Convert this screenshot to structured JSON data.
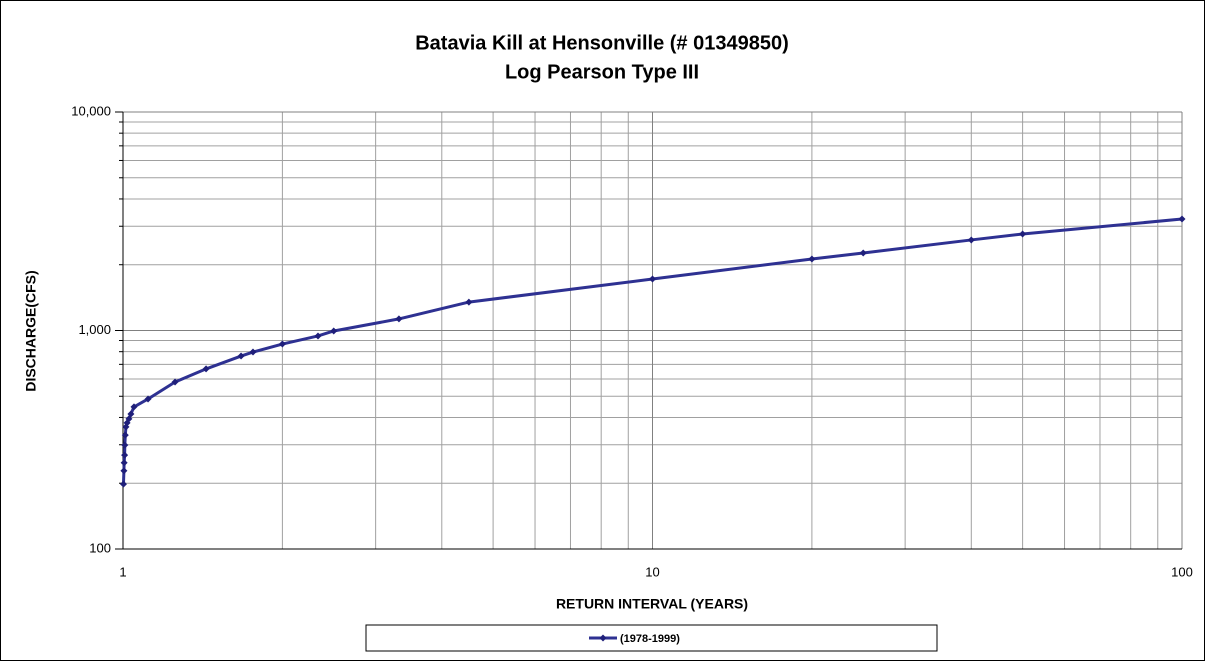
{
  "chart_data": {
    "type": "line",
    "title": "Batavia Kill at Hensonville (# 01349850)",
    "subtitle": "Log Pearson Type III",
    "x_label": "RETURN INTERVAL (YEARS)",
    "y_label": "DISCHARGE(CFS)",
    "x_scale": "log",
    "y_scale": "log",
    "grid": true,
    "legend": "bottom",
    "x": [
      1.002,
      1.004,
      1.005,
      1.007,
      1.008,
      1.01,
      1.013,
      1.018,
      1.026,
      1.035,
      1.049,
      1.115,
      1.254,
      1.435,
      1.671,
      1.76,
      2.0,
      2.335,
      2.5,
      3.32,
      4.5,
      10,
      20,
      25,
      40,
      50,
      100
    ],
    "series": [
      {
        "name": "(1978-1999)",
        "color": "#2e3192",
        "values": [
          198,
          228,
          248,
          269,
          299,
          332,
          362,
          378,
          394,
          415,
          447,
          486,
          581,
          667,
          764,
          797,
          867,
          944,
          995,
          1130,
          1349,
          1720,
          2124,
          2264,
          2597,
          2766,
          3237
        ]
      }
    ],
    "xlim": [
      1,
      100
    ],
    "ylim": [
      100,
      10000
    ],
    "xticks": [
      1,
      10,
      100
    ],
    "yticks": [
      100,
      {
        "value": 1000,
        "label": "1,000"
      },
      {
        "value": 10000,
        "label": "10,000"
      }
    ],
    "xminorticks": [
      2,
      3,
      4,
      5,
      6,
      7,
      8,
      9,
      20,
      30,
      40,
      50,
      60,
      70,
      80,
      90
    ],
    "yminorticks": [
      200,
      300,
      400,
      500,
      600,
      700,
      800,
      900,
      2000,
      3000,
      4000,
      5000,
      6000,
      7000,
      8000,
      9000
    ]
  }
}
